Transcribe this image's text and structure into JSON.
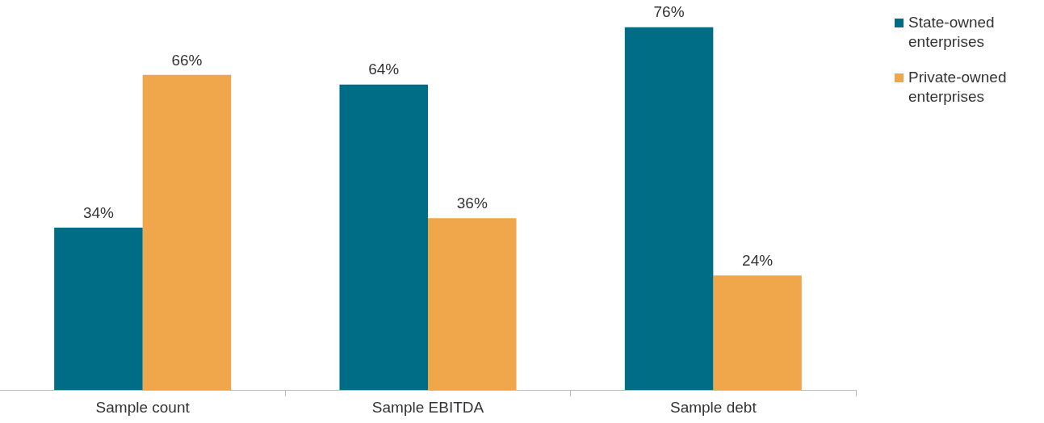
{
  "chart_data": {
    "type": "bar",
    "categories": [
      "Sample count",
      "Sample EBITDA",
      "Sample debt"
    ],
    "series": [
      {
        "name": "State-owned enterprises",
        "color": "#006d87",
        "values": [
          34,
          64,
          76
        ],
        "value_labels": [
          "34%",
          "64%",
          "76%"
        ]
      },
      {
        "name": "Private-owned enterprises",
        "color": "#f0a64a",
        "values": [
          66,
          36,
          24
        ],
        "value_labels": [
          "66%",
          "36%",
          "24%"
        ]
      }
    ],
    "grid": false,
    "legend": "top right",
    "tick_labels": "x"
  }
}
